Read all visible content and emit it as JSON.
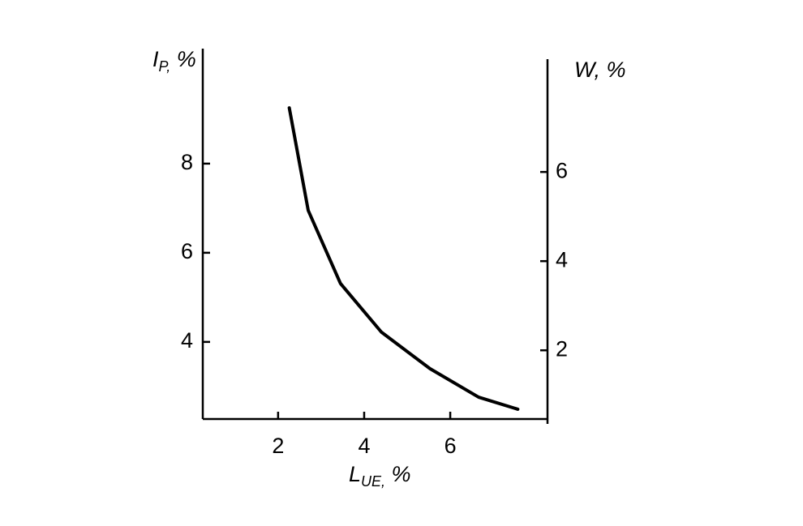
{
  "chart_data": {
    "type": "line",
    "ylabel": {
      "main": "I",
      "sub": "P,",
      "unit": " %"
    },
    "y2label": "W, %",
    "xlabel": {
      "main": "L",
      "sub": "UE,",
      "unit": " %"
    },
    "x": [
      2.26,
      2.7,
      3.45,
      4.4,
      5.53,
      6.66,
      7.57
    ],
    "series": [
      {
        "color": "#000000",
        "values": [
          9.25,
          6.95,
          5.31,
          4.22,
          3.4,
          2.76,
          2.49
        ]
      }
    ],
    "xlim": [
      0.25,
      8.26
    ],
    "xticks": [
      2,
      4,
      6
    ],
    "ylim": [
      2.27,
      10.58
    ],
    "yticks": [
      4,
      6,
      8
    ],
    "y2lim": [
      0.35,
      8.53
    ],
    "y2ticks": [
      2,
      4,
      6
    ],
    "grid": false
  }
}
